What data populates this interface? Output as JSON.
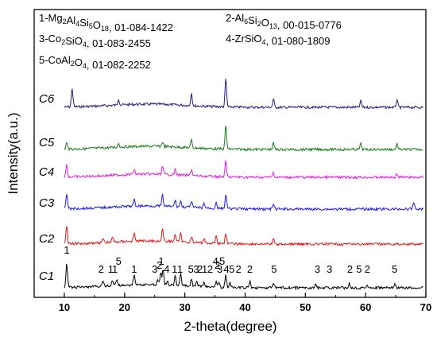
{
  "chart_data": {
    "type": "line",
    "xlabel": "2-theta(degree)",
    "ylabel": "Intensity(a.u.)",
    "xlim": [
      5,
      70
    ],
    "x_ticks": [
      "10",
      "20",
      "30",
      "40",
      "50",
      "60",
      "70"
    ],
    "legend_placement": "top",
    "phase_legend": [
      {
        "id": "1",
        "formula_parts": [
          [
            "1-Mg",
            ""
          ],
          [
            "2",
            "sub"
          ],
          [
            "Al",
            ""
          ],
          [
            "4",
            "sub"
          ],
          [
            "Si",
            ""
          ],
          [
            "5",
            "sub"
          ],
          [
            "O",
            ""
          ],
          [
            "18",
            "sub"
          ],
          [
            ", 01-084-1422",
            ""
          ]
        ]
      },
      {
        "id": "2",
        "formula_parts": [
          [
            "2-Al",
            ""
          ],
          [
            "6",
            "sub"
          ],
          [
            "Si",
            ""
          ],
          [
            "2",
            "sub"
          ],
          [
            "O",
            ""
          ],
          [
            "13",
            "sub"
          ],
          [
            ", 00-015-0776",
            ""
          ]
        ]
      },
      {
        "id": "3",
        "formula_parts": [
          [
            "3-Co",
            ""
          ],
          [
            "2",
            "sub"
          ],
          [
            "SiO",
            ""
          ],
          [
            "4",
            "sub"
          ],
          [
            ", 01-083-2455",
            ""
          ]
        ]
      },
      {
        "id": "4",
        "formula_parts": [
          [
            "4-ZrSiO",
            ""
          ],
          [
            "4",
            "sub"
          ],
          [
            ", 01-080-1809",
            ""
          ]
        ]
      },
      {
        "id": "5",
        "formula_parts": [
          [
            "5-CoAl",
            ""
          ],
          [
            "2",
            "sub"
          ],
          [
            "O",
            ""
          ],
          [
            "4",
            "sub"
          ],
          [
            ",  01-082-2252",
            ""
          ]
        ]
      }
    ],
    "series": [
      {
        "name": "C6",
        "color": "#1f1f7a",
        "peaks": [
          [
            11.3,
            24
          ],
          [
            19.0,
            8
          ],
          [
            31.1,
            16
          ],
          [
            36.8,
            36
          ],
          [
            44.7,
            10
          ],
          [
            59.2,
            8
          ],
          [
            65.2,
            10
          ]
        ]
      },
      {
        "name": "C5",
        "color": "#1a7a1a",
        "peaks": [
          [
            10.4,
            8
          ],
          [
            19.0,
            5
          ],
          [
            26.3,
            6
          ],
          [
            31.1,
            10
          ],
          [
            36.8,
            30
          ],
          [
            44.7,
            8
          ],
          [
            59.2,
            7
          ],
          [
            65.2,
            7
          ]
        ]
      },
      {
        "name": "C4",
        "color": "#e01ee0",
        "peaks": [
          [
            10.4,
            16
          ],
          [
            21.6,
            6
          ],
          [
            26.3,
            10
          ],
          [
            28.4,
            7
          ],
          [
            31.1,
            8
          ],
          [
            36.8,
            20
          ],
          [
            44.7,
            6
          ],
          [
            65.2,
            5
          ]
        ]
      },
      {
        "name": "C3",
        "color": "#1c1ce6",
        "peaks": [
          [
            10.4,
            20
          ],
          [
            21.6,
            8
          ],
          [
            26.3,
            14
          ],
          [
            28.4,
            8
          ],
          [
            29.3,
            7
          ],
          [
            31.1,
            8
          ],
          [
            33.2,
            6
          ],
          [
            35.2,
            8
          ],
          [
            36.8,
            18
          ],
          [
            44.7,
            6
          ],
          [
            68.0,
            9
          ]
        ]
      },
      {
        "name": "C2",
        "color": "#e01a1a",
        "peaks": [
          [
            10.4,
            24
          ],
          [
            16.4,
            5
          ],
          [
            18.0,
            6
          ],
          [
            21.6,
            10
          ],
          [
            26.3,
            16
          ],
          [
            28.4,
            10
          ],
          [
            29.3,
            10
          ],
          [
            31.1,
            8
          ],
          [
            33.2,
            6
          ],
          [
            35.2,
            10
          ],
          [
            36.8,
            14
          ],
          [
            44.7,
            6
          ]
        ]
      },
      {
        "name": "C1",
        "color": "#000000",
        "peaks": [
          [
            10.4,
            30
          ],
          [
            16.4,
            8
          ],
          [
            18.0,
            7
          ],
          [
            18.7,
            8
          ],
          [
            21.6,
            14
          ],
          [
            25.5,
            6
          ],
          [
            26.0,
            16
          ],
          [
            26.4,
            20
          ],
          [
            27.1,
            6
          ],
          [
            28.4,
            14
          ],
          [
            29.3,
            16
          ],
          [
            31.1,
            8
          ],
          [
            32.0,
            6
          ],
          [
            33.2,
            6
          ],
          [
            35.2,
            8
          ],
          [
            35.7,
            6
          ],
          [
            36.8,
            16
          ],
          [
            37.5,
            5
          ],
          [
            40.8,
            8
          ],
          [
            44.7,
            6
          ],
          [
            51.7,
            4
          ],
          [
            57.3,
            6
          ],
          [
            60.2,
            4
          ],
          [
            64.8,
            4
          ]
        ]
      }
    ],
    "peak_labels": [
      {
        "text": "1",
        "x": 10.4
      },
      {
        "text": "2",
        "x": 16.1
      },
      {
        "text": "1",
        "x": 17.7
      },
      {
        "text": "1",
        "x": 18.4
      },
      {
        "text": "5",
        "x": 19.0
      },
      {
        "text": "1",
        "x": 21.6
      },
      {
        "text": "3",
        "x": 25.0
      },
      {
        "text": "2",
        "x": 25.8
      },
      {
        "text": "1",
        "x": 26.1
      },
      {
        "text": "4",
        "x": 27.0
      },
      {
        "text": "1",
        "x": 28.3
      },
      {
        "text": "1",
        "x": 29.2
      },
      {
        "text": "5",
        "x": 31.0
      },
      {
        "text": "3",
        "x": 31.9
      },
      {
        "text": "2",
        "x": 32.5
      },
      {
        "text": "1",
        "x": 33.3
      },
      {
        "text": "2",
        "x": 34.2
      },
      {
        "text": "4",
        "x": 35.1
      },
      {
        "text": "2",
        "x": 35.4
      },
      {
        "text": "5",
        "x": 36.2
      },
      {
        "text": "3",
        "x": 35.8
      },
      {
        "text": "4",
        "x": 36.9
      },
      {
        "text": "5",
        "x": 37.8
      },
      {
        "text": "2",
        "x": 38.9
      },
      {
        "text": "2",
        "x": 40.8
      },
      {
        "text": "5",
        "x": 44.8
      },
      {
        "text": "3",
        "x": 52.0
      },
      {
        "text": "3",
        "x": 54.0
      },
      {
        "text": "2",
        "x": 57.4
      },
      {
        "text": "5",
        "x": 58.9
      },
      {
        "text": "2",
        "x": 60.3
      },
      {
        "text": "5",
        "x": 64.8
      }
    ]
  }
}
